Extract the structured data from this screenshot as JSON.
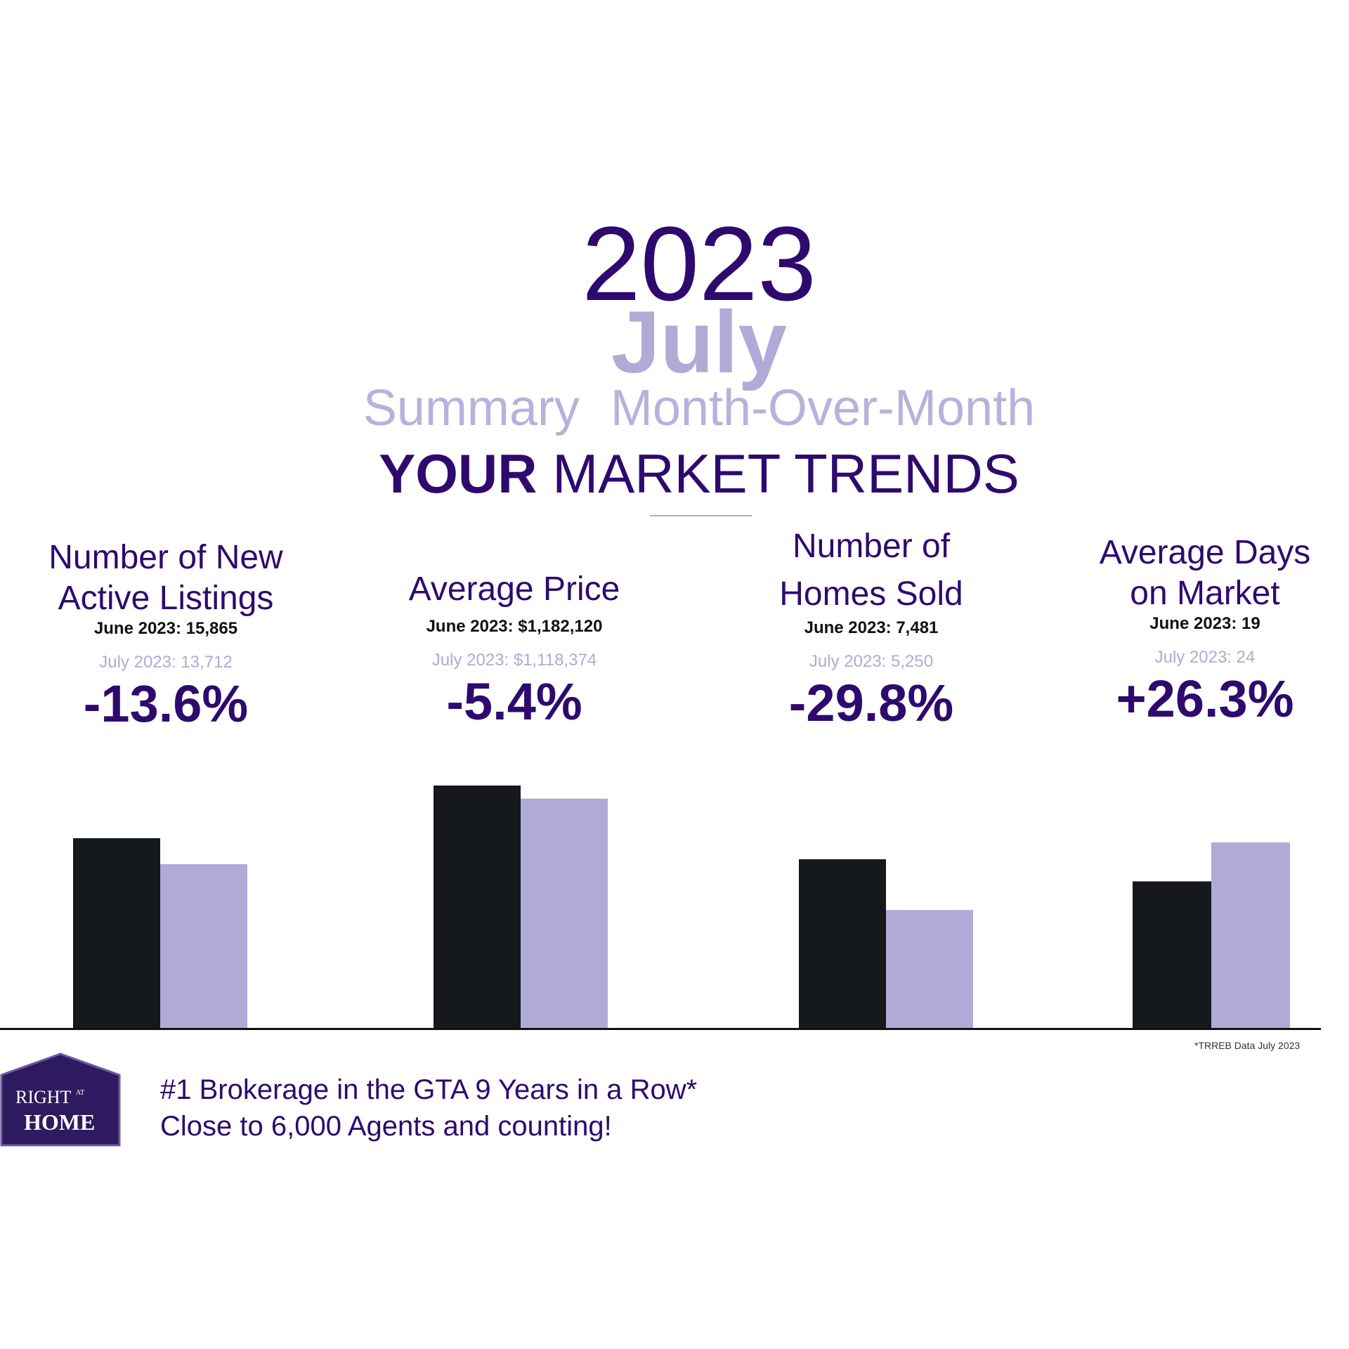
{
  "header": {
    "year": "2023",
    "month": "July",
    "summary_a": "Summary",
    "summary_b": "Month-Over-Month",
    "trends_bold": "YOUR",
    "trends_rest": "MARKET TRENDS"
  },
  "metrics": [
    {
      "title_1": "Number of New",
      "title_2": "Active Listings",
      "june": "June 2023:  15,865",
      "july": "July  2023: 13,712",
      "change": "-13.6%"
    },
    {
      "title_1": "Average Price",
      "title_2": "",
      "june": "June 2023:  $1,182,120",
      "july": "July  2023: $1,118,374",
      "change": "-5.4%"
    },
    {
      "title_1": "Number of",
      "title_2": "Homes Sold",
      "june": "June 2023:  7,481",
      "july": "July  2023: 5,250",
      "change": "-29.8%"
    },
    {
      "title_1": "Average Days",
      "title_2": "on Market",
      "june": "June 2023:  19",
      "july": "July  2023: 24",
      "change": "+26.3%"
    }
  ],
  "chart_data": {
    "type": "bar",
    "categories": [
      "Number of New Active Listings",
      "Average Price",
      "Number of Homes Sold",
      "Average Days on Market"
    ],
    "series": [
      {
        "name": "June 2023",
        "values": [
          15865,
          1182120,
          7481,
          19
        ]
      },
      {
        "name": "July 2023",
        "values": [
          13712,
          1118374,
          5250,
          24
        ]
      }
    ],
    "colors": [
      "#15191c",
      "#b1aad6"
    ]
  },
  "footer": {
    "source": "*TRREB Data July 2023",
    "line1": "#1 Brokerage in the GTA  9 Years in a Row*",
    "line2": "Close to 6,000 Agents and counting!",
    "logo_top": "RIGHT",
    "logo_at": "AT",
    "logo_home": "HOME"
  }
}
